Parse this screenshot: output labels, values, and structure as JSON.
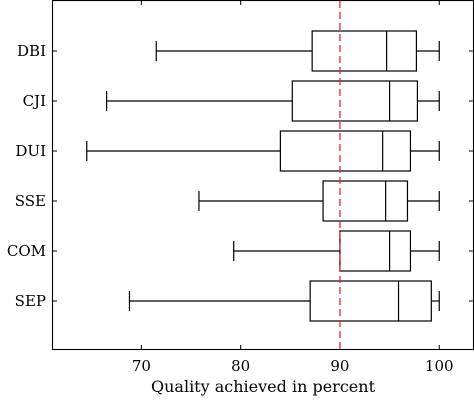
{
  "chart_data": {
    "type": "boxplot",
    "orientation": "horizontal",
    "xlabel": "Quality achieved in percent",
    "ylabel": "",
    "title": "",
    "xlim": [
      61,
      103.5
    ],
    "xticks": [
      70,
      80,
      90,
      100
    ],
    "grid": false,
    "reference_line": {
      "value": 90,
      "color": "#e8262b",
      "style": "dashed"
    },
    "categories": [
      "DBI",
      "CJI",
      "DUI",
      "SSE",
      "COM",
      "SEP"
    ],
    "boxes": [
      {
        "name": "DBI",
        "whisker_low": 71.5,
        "q1": 87.2,
        "median": 94.7,
        "q3": 97.7,
        "whisker_high": 100
      },
      {
        "name": "CJI",
        "whisker_low": 66.5,
        "q1": 85.2,
        "median": 95.0,
        "q3": 97.8,
        "whisker_high": 100
      },
      {
        "name": "DUI",
        "whisker_low": 64.5,
        "q1": 84.0,
        "median": 94.3,
        "q3": 97.1,
        "whisker_high": 100
      },
      {
        "name": "SSE",
        "whisker_low": 75.8,
        "q1": 88.3,
        "median": 94.6,
        "q3": 96.8,
        "whisker_high": 100
      },
      {
        "name": "COM",
        "whisker_low": 79.3,
        "q1": 90.0,
        "median": 95.0,
        "q3": 97.1,
        "whisker_high": 100
      },
      {
        "name": "SEP",
        "whisker_low": 68.8,
        "q1": 87.0,
        "median": 95.9,
        "q3": 99.2,
        "whisker_high": 100
      }
    ]
  }
}
